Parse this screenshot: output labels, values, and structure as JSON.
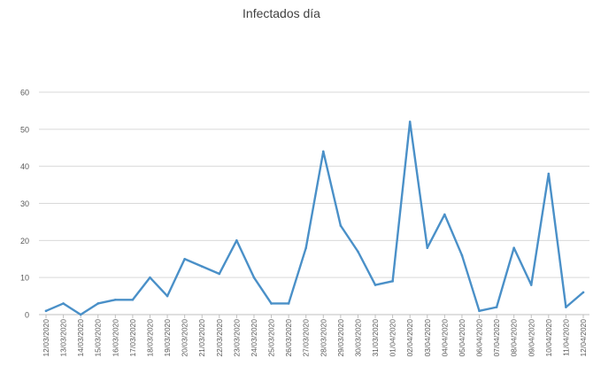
{
  "chart_data": {
    "type": "line",
    "title": "Infectados día",
    "xlabel": "",
    "ylabel": "",
    "ylim": [
      0,
      60
    ],
    "yticks": [
      0,
      10,
      20,
      30,
      40,
      50,
      60
    ],
    "grid": true,
    "legend": "none",
    "line_color": "#4a90c8",
    "grid_color": "#d9d9d9",
    "text_color": "#595959",
    "categories": [
      "12/03/2020",
      "13/03/2020",
      "14/03/2020",
      "15/03/2020",
      "16/03/2020",
      "17/03/2020",
      "18/03/2020",
      "19/03/2020",
      "20/03/2020",
      "21/03/2020",
      "22/03/2020",
      "23/03/2020",
      "24/03/2020",
      "25/03/2020",
      "26/03/2020",
      "27/03/2020",
      "28/03/2020",
      "29/03/2020",
      "30/03/2020",
      "31/03/2020",
      "01/04/2020",
      "02/04/2020",
      "03/04/2020",
      "04/04/2020",
      "05/04/2020",
      "06/04/2020",
      "07/04/2020",
      "08/04/2020",
      "09/04/2020",
      "10/04/2020",
      "11/04/2020",
      "12/04/2020"
    ],
    "values": [
      1,
      3,
      0,
      3,
      4,
      4,
      10,
      5,
      15,
      13,
      11,
      20,
      10,
      3,
      3,
      18,
      44,
      24,
      17,
      8,
      9,
      52,
      18,
      27,
      16,
      1,
      2,
      18,
      8,
      38,
      2,
      6
    ]
  }
}
